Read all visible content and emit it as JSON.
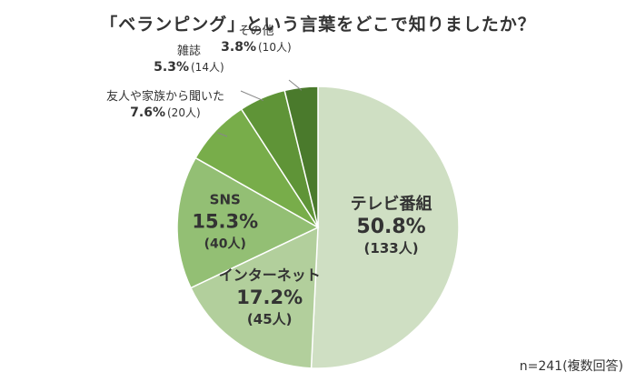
{
  "chart_data": {
    "type": "pie",
    "title": "「ベランピング」という言葉をどこで知りましたか？",
    "note": "n=241(複数回答)",
    "slices": [
      {
        "label": "テレビ番組",
        "percent_text": "50.8%",
        "count_text": "(133人)",
        "value": 133,
        "color": "#cfdfc3"
      },
      {
        "label": "インターネット",
        "percent_text": "17.2%",
        "count_text": "(45人)",
        "value": 45,
        "color": "#b2cf9c"
      },
      {
        "label": "SNS",
        "percent_text": "15.3%",
        "count_text": "(40人)",
        "value": 40,
        "color": "#93bf74"
      },
      {
        "label": "友人や家族から聞いた",
        "percent_text": "7.6%",
        "count_text": "(20人)",
        "value": 20,
        "color": "#78ad4a"
      },
      {
        "label": "雑誌",
        "percent_text": "5.3%",
        "count_text": "(14人)",
        "value": 14,
        "color": "#5f9437"
      },
      {
        "label": "その他",
        "percent_text": "3.8%",
        "count_text": "(10人)",
        "value": 10,
        "color": "#4a7a2c"
      }
    ]
  }
}
